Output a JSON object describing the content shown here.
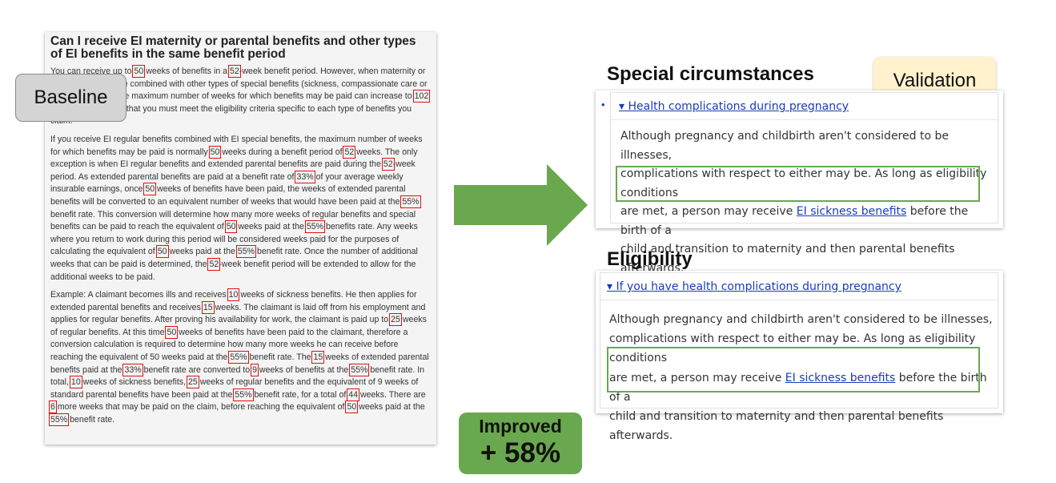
{
  "baseline": {
    "badge_label": "Baseline",
    "title": "Can I receive EI maternity or parental benefits and other types of EI benefits in the same benefit period",
    "p1": [
      {
        "t": "You can receive up to "
      },
      {
        "t": "50",
        "h": true
      },
      {
        "t": " weeks of benefits in a "
      },
      {
        "t": "52",
        "h": true
      },
      {
        "t": "-week benefit period. However, when maternity or parental benefits are combined with other types of special benefits (sickness, compassionate care or family caregiver), the maximum number of weeks for which benefits may be paid can increase to "
      },
      {
        "t": "102",
        "h": true
      },
      {
        "t": " weeks. Please note that you must meet the eligibility criteria specific to each type of benefits you claim."
      }
    ],
    "p2": [
      {
        "t": "If you receive EI regular benefits combined with EI special benefits, the maximum number of weeks for which benefits may be paid is normally "
      },
      {
        "t": "50",
        "h": true
      },
      {
        "t": " weeks during a benefit period of "
      },
      {
        "t": "52",
        "h": true
      },
      {
        "t": " weeks. The only exception is when EI regular benefits and extended parental benefits are paid during the "
      },
      {
        "t": "52",
        "h": true
      },
      {
        "t": "-week period. As extended parental benefits are paid at a benefit rate of "
      },
      {
        "t": "33%",
        "h": true
      },
      {
        "t": " of your average weekly insurable earnings, once "
      },
      {
        "t": "50",
        "h": true
      },
      {
        "t": " weeks of benefits have been paid, the weeks of extended parental benefits will be converted to an equivalent number of weeks that would have been paid at the "
      },
      {
        "t": "55%",
        "h": true
      },
      {
        "t": " benefit rate. This conversion will determine how many more weeks of regular benefits and special benefits can be paid to reach the equivalent of "
      },
      {
        "t": "50",
        "h": true
      },
      {
        "t": " weeks paid at the "
      },
      {
        "t": "55%",
        "h": true
      },
      {
        "t": " benefits rate. Any weeks where you return to work during this period will be considered weeks paid for the purposes of calculating the equivalent of "
      },
      {
        "t": "50",
        "h": true
      },
      {
        "t": " weeks paid at the "
      },
      {
        "t": "55%",
        "h": true
      },
      {
        "t": " benefit rate. Once the number of additional weeks that can be paid is determined, the "
      },
      {
        "t": "52",
        "h": true
      },
      {
        "t": "-week benefit period will be extended to allow for the additional weeks to be paid."
      }
    ],
    "p3": [
      {
        "t": "Example: A claimant becomes ills and receives "
      },
      {
        "t": "10",
        "h": true
      },
      {
        "t": " weeks of sickness benefits. He then applies for extended parental benefits and receives "
      },
      {
        "t": "15",
        "h": true
      },
      {
        "t": " weeks. The claimant is laid off from his employment and applies for regular benefits. After proving his availability for work, the claimant is paid up to "
      },
      {
        "t": "25",
        "h": true
      },
      {
        "t": " weeks of regular benefits. At this time "
      },
      {
        "t": "50",
        "h": true
      },
      {
        "t": " weeks of benefits have been paid to the claimant, therefore a conversion calculation is required to determine how many more weeks he can receive before reaching the equivalent of 50 weeks paid at the "
      },
      {
        "t": "55%",
        "h": true
      },
      {
        "t": " benefit rate. The "
      },
      {
        "t": "15",
        "h": true
      },
      {
        "t": " weeks of extended parental benefits paid at the "
      },
      {
        "t": "33%",
        "h": true
      },
      {
        "t": " benefit rate are converted to "
      },
      {
        "t": "9",
        "h": true
      },
      {
        "t": " weeks of benefits at the "
      },
      {
        "t": "55%",
        "h": true
      },
      {
        "t": " benefit rate. In total, "
      },
      {
        "t": "10",
        "h": true
      },
      {
        "t": " weeks of sickness benefits, "
      },
      {
        "t": "25",
        "h": true
      },
      {
        "t": " weeks of regular benefits and the equivalent of 9 weeks of standard parental benefits have been paid at the "
      },
      {
        "t": "55%",
        "h": true
      },
      {
        "t": " benefit rate, for a total of "
      },
      {
        "t": "44",
        "h": true
      },
      {
        "t": " weeks. There are "
      },
      {
        "t": "6",
        "h": true
      },
      {
        "t": " more weeks that may be paid on the claim, before reaching the equivalent of "
      },
      {
        "t": "50",
        "h": true
      },
      {
        "t": " weeks paid at the "
      },
      {
        "t": "55%",
        "h": true
      },
      {
        "t": " benefit rate."
      }
    ]
  },
  "improved": {
    "line1": "Improved",
    "line2": "+ 58%"
  },
  "validation_label": "Validation",
  "special": {
    "heading": "Special circumstances",
    "link": "▾ Health complications during pregnancy",
    "line1": "Although pregnancy and childbirth aren't considered to be illnesses,",
    "line2": "complications with respect to either may be. As long as eligibility conditions",
    "line3_pre": "are met, a person may receive ",
    "line3_link": "EI sickness benefits",
    "line3_post": " before the birth of a",
    "line4": "child and transition to maternity and then parental benefits afterwards."
  },
  "eligibility": {
    "heading": "Eligibility",
    "link": "▾ If you have health complications during pregnancy",
    "line1": "Although pregnancy and childbirth aren't considered to be illnesses,",
    "line2": "complications with respect to either may be. As long as eligibility conditions",
    "line3_pre": "are met, a person may receive ",
    "line3_link": "EI sickness benefits",
    "line3_post": " before the birth of a",
    "line4": "child and transition to maternity and then parental benefits afterwards."
  },
  "colors": {
    "highlight": "#e01010",
    "green": "#6aa84f",
    "link": "#1a3cb8",
    "validation_bg": "#fff2cc"
  }
}
